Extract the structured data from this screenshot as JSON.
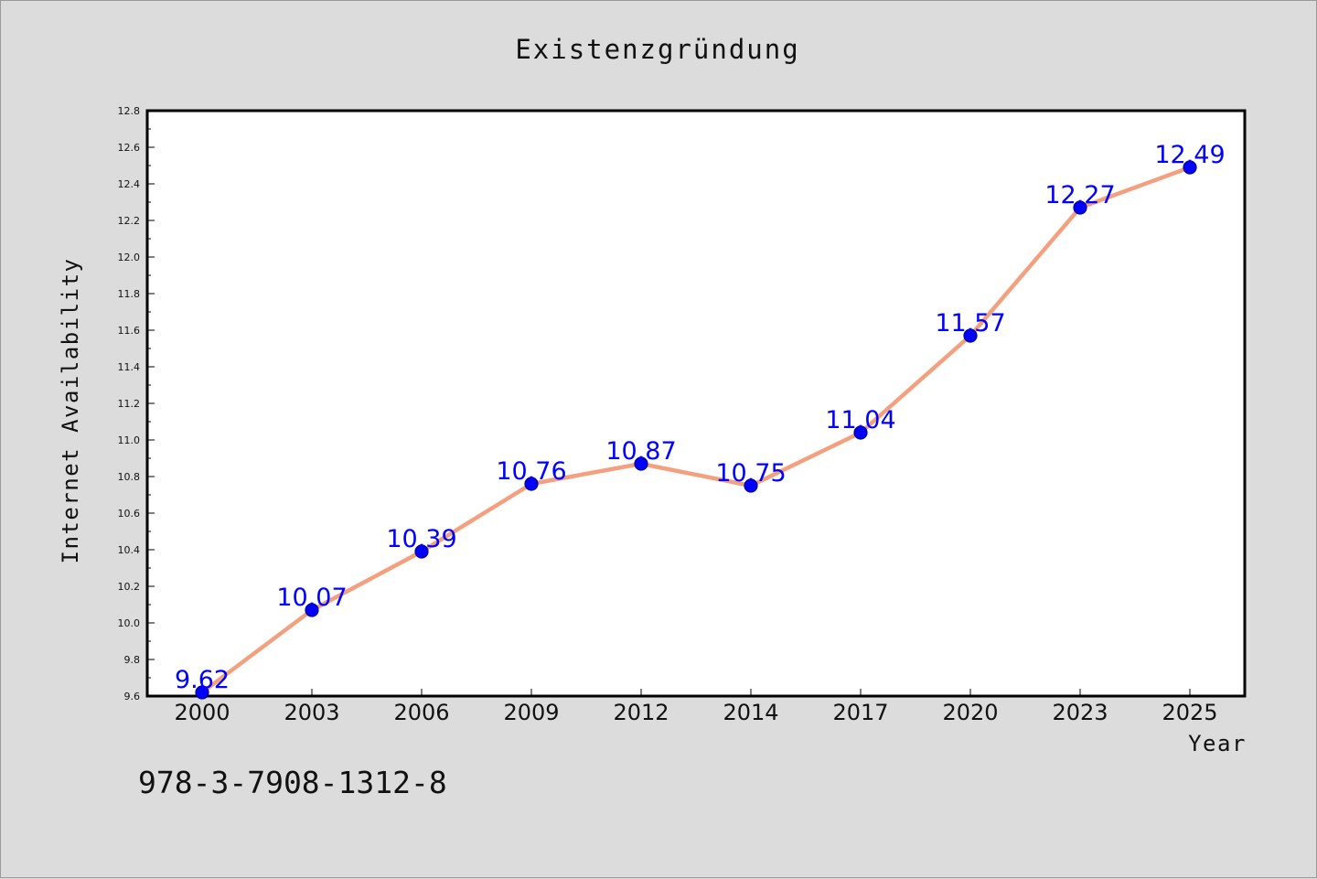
{
  "chart_data": {
    "type": "line",
    "title": "Existenzgründung",
    "xlabel": "Year",
    "ylabel": "Internet Availability",
    "categories": [
      "2000",
      "2003",
      "2006",
      "2009",
      "2012",
      "2014",
      "2017",
      "2020",
      "2023",
      "2025"
    ],
    "series": [
      {
        "values": [
          9.62,
          10.07,
          10.39,
          10.76,
          10.87,
          10.75,
          11.04,
          11.57,
          12.27,
          12.49
        ],
        "data_labels": [
          "9.62",
          "10.07",
          "10.39",
          "10.76",
          "10.87",
          "10.75",
          "11.04",
          "11.57",
          "12.27",
          "12.49"
        ]
      }
    ],
    "ylim": [
      9.6,
      12.8
    ],
    "yticks": [
      "9.6",
      "9.8",
      "10.0",
      "10.2",
      "10.4",
      "10.6",
      "10.8",
      "11.0",
      "11.2",
      "11.4",
      "11.6",
      "11.8",
      "12.0",
      "12.2",
      "12.4",
      "12.6",
      "12.8"
    ],
    "grid": false,
    "legend": "none",
    "colors": {
      "line": "#f4a07f",
      "marker_fill": "#0000ff",
      "marker_edge": "#00008b",
      "data_label": "#0000ff",
      "plot_background": "#ffffff",
      "figure_background": "#dcdcdc"
    }
  },
  "footnote": "978-3-7908-1312-8"
}
